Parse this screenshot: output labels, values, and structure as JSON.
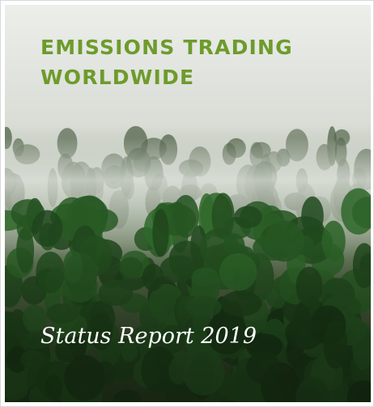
{
  "cover": {
    "title_lines": [
      "EMISSIONS TRADING",
      "WORLDWIDE"
    ],
    "subtitle": "Status Report 2019"
  }
}
